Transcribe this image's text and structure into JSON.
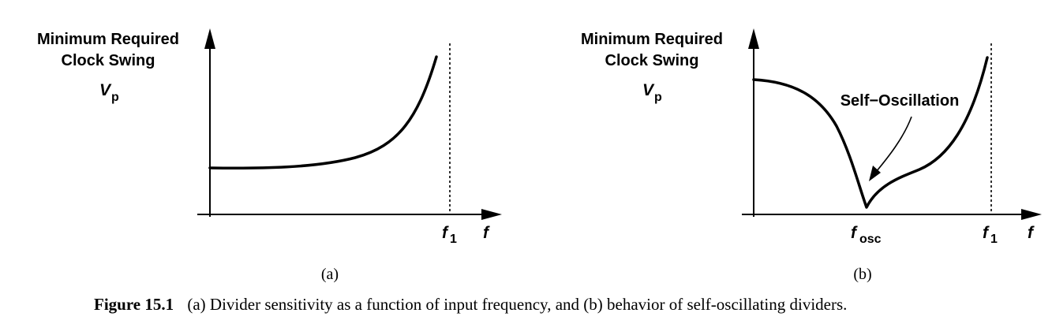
{
  "panel_a": {
    "ylabel_line1": "Minimum Required",
    "ylabel_line2": "Clock Swing",
    "ylabel_var": "V",
    "ylabel_sub": "p",
    "xlabel": "f",
    "f1_main": "f",
    "f1_sub": "1",
    "caption": "(a)"
  },
  "panel_b": {
    "ylabel_line1": "Minimum Required",
    "ylabel_line2": "Clock Swing",
    "ylabel_var": "V",
    "ylabel_sub": "p",
    "xlabel": "f",
    "fosc_main": "f",
    "fosc_sub": "osc",
    "f1_main": "f",
    "f1_sub": "1",
    "annotation": "Self−Oscillation",
    "caption": "(b)"
  },
  "figure_caption": {
    "label": "Figure 15.1",
    "text": "(a) Divider sensitivity as a function of input frequency, and (b) behavior of self-oscillating dividers."
  },
  "colors": {
    "ink": "#000000",
    "background": "#ffffff"
  }
}
